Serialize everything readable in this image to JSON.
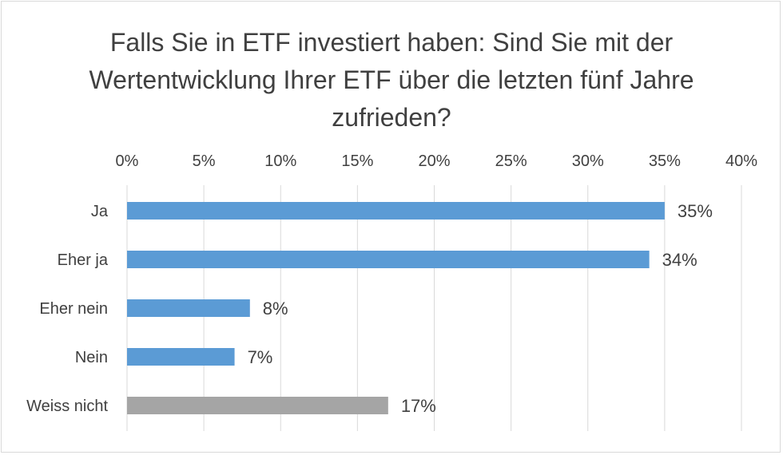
{
  "chart_data": {
    "type": "bar",
    "orientation": "horizontal",
    "title": "Falls Sie in ETF investiert haben: Sind Sie mit der Wertentwicklung Ihrer ETF über die letzten fünf Jahre zufrieden?",
    "categories": [
      "Ja",
      "Eher ja",
      "Eher nein",
      "Nein",
      "Weiss nicht"
    ],
    "values": [
      35,
      34,
      8,
      7,
      17
    ],
    "value_labels": [
      "35%",
      "34%",
      "8%",
      "7%",
      "17%"
    ],
    "bar_colors": [
      "#5b9bd5",
      "#5b9bd5",
      "#5b9bd5",
      "#5b9bd5",
      "#a5a5a5"
    ],
    "xlim": [
      0,
      40
    ],
    "x_ticks": [
      0,
      5,
      10,
      15,
      20,
      25,
      30,
      35,
      40
    ],
    "x_tick_labels": [
      "0%",
      "5%",
      "10%",
      "15%",
      "20%",
      "25%",
      "30%",
      "35%",
      "40%"
    ],
    "x_axis_position": "top",
    "grid": true,
    "legend": false
  }
}
